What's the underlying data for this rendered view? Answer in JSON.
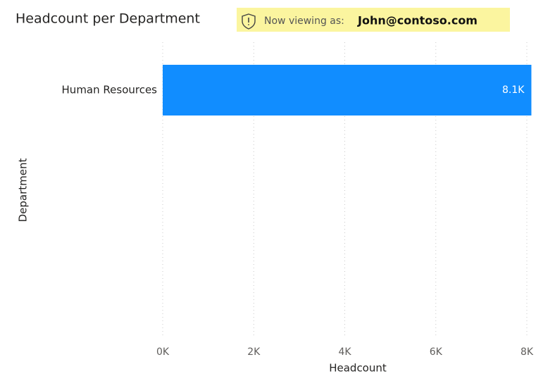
{
  "banner": {
    "label": "Now viewing as:",
    "user": "John@contoso.com"
  },
  "chart_data": {
    "type": "hbar",
    "title": "Headcount per Department",
    "x_label": "Headcount",
    "y_label": "Department",
    "categories": [
      "Human Resources"
    ],
    "values": [
      8100
    ],
    "value_labels": [
      "8.1K"
    ],
    "color": "#118dff",
    "xlim": [
      0,
      8000
    ],
    "xticks": [
      {
        "value": 0,
        "label": "0K"
      },
      {
        "value": 2000,
        "label": "2K"
      },
      {
        "value": 4000,
        "label": "4K"
      },
      {
        "value": 6000,
        "label": "6K"
      },
      {
        "value": 8000,
        "label": "8K"
      }
    ],
    "grid": true
  }
}
